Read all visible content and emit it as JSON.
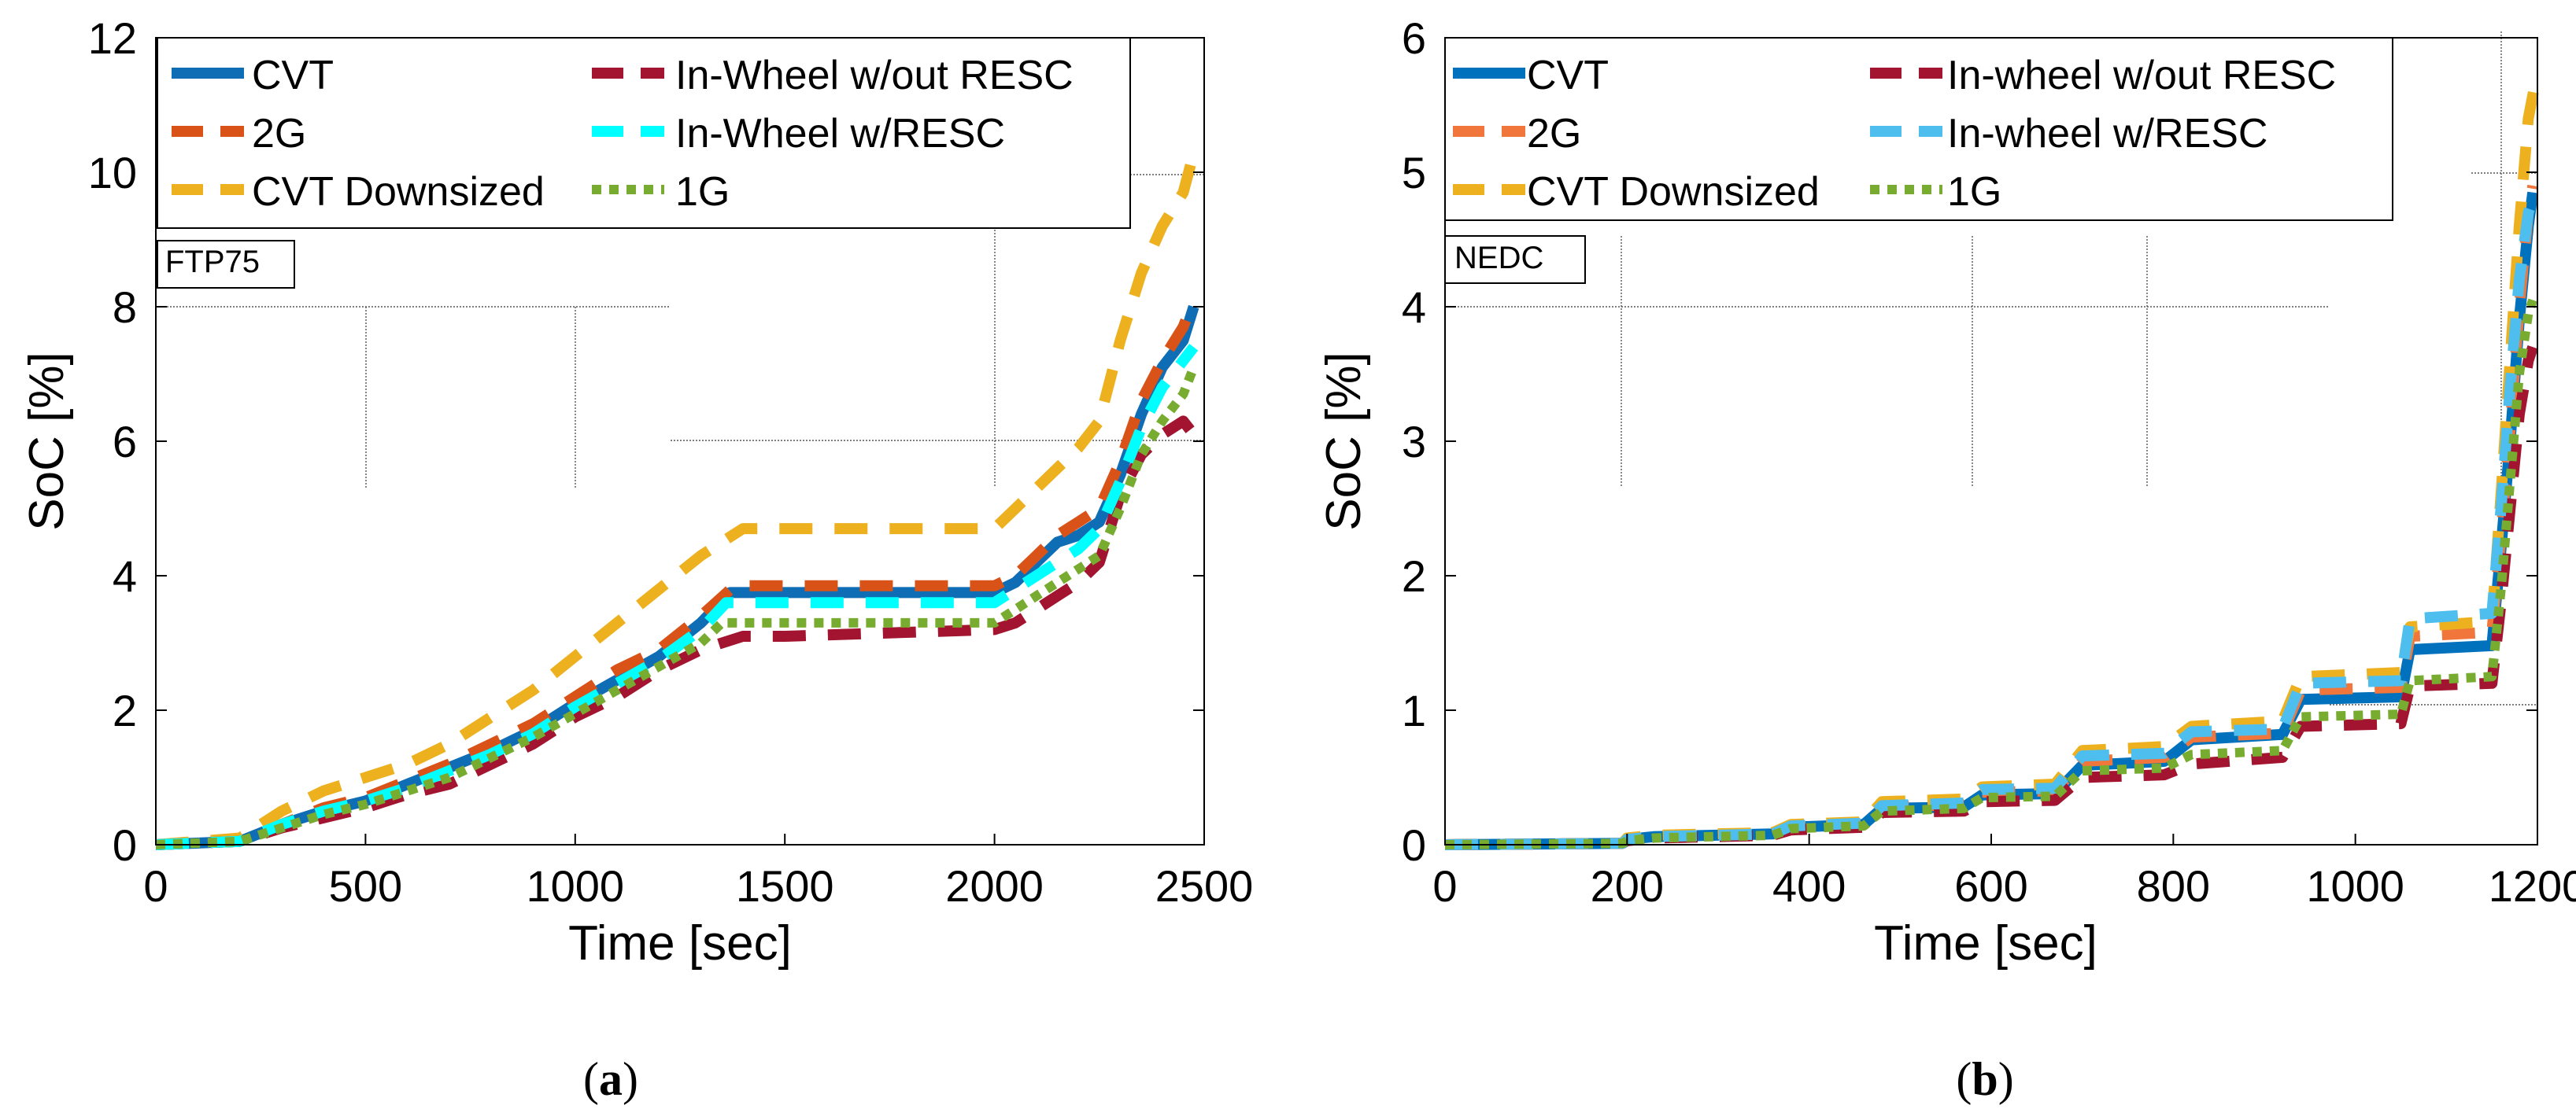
{
  "chart_data": [
    {
      "type": "line",
      "panel_label": "(a)",
      "label_letter": "a",
      "box_label": "FTP75",
      "xlabel": "Time [sec]",
      "ylabel": "SoC [%]",
      "xlim": [
        0,
        2500
      ],
      "ylim": [
        0,
        12
      ],
      "xticks": [
        0,
        500,
        1000,
        1500,
        2000,
        2500
      ],
      "yticks": [
        0,
        2,
        4,
        6,
        8,
        10,
        12
      ],
      "series": [
        {
          "name": "CVT",
          "color": "#0f6db5",
          "dash": "solid",
          "x": [
            0,
            200,
            300,
            400,
            500,
            600,
            700,
            800,
            900,
            1000,
            1100,
            1200,
            1300,
            1370,
            1500,
            2000,
            2050,
            2100,
            2150,
            2200,
            2250,
            2300,
            2350,
            2400,
            2450,
            2475
          ],
          "y": [
            0,
            0.05,
            0.3,
            0.5,
            0.65,
            0.9,
            1.15,
            1.4,
            1.7,
            2.1,
            2.45,
            2.8,
            3.3,
            3.75,
            3.75,
            3.75,
            3.9,
            4.2,
            4.5,
            4.6,
            4.8,
            5.5,
            6.4,
            7.1,
            7.5,
            8.0
          ]
        },
        {
          "name": "2G",
          "color": "#d95319",
          "dash": "dash",
          "x": [
            0,
            200,
            300,
            400,
            500,
            600,
            700,
            800,
            900,
            1000,
            1100,
            1200,
            1300,
            1380,
            2000,
            2050,
            2100,
            2150,
            2200,
            2250,
            2300,
            2350,
            2400,
            2450,
            2475
          ],
          "y": [
            0,
            0.05,
            0.3,
            0.55,
            0.7,
            0.95,
            1.2,
            1.5,
            1.8,
            2.2,
            2.6,
            2.9,
            3.4,
            3.85,
            3.85,
            4.0,
            4.3,
            4.6,
            4.8,
            5.0,
            5.7,
            6.6,
            7.2,
            7.7,
            8.1
          ]
        },
        {
          "name": "CVT Downsized",
          "color": "#edb120",
          "dash": "dash",
          "x": [
            0,
            200,
            300,
            400,
            500,
            600,
            700,
            800,
            900,
            1000,
            1100,
            1200,
            1300,
            1400,
            1500,
            2000,
            2050,
            2100,
            2150,
            2200,
            2250,
            2300,
            2350,
            2400,
            2450,
            2480
          ],
          "y": [
            0,
            0.1,
            0.5,
            0.8,
            1.0,
            1.2,
            1.5,
            1.9,
            2.3,
            2.8,
            3.3,
            3.8,
            4.3,
            4.7,
            4.7,
            4.7,
            5.0,
            5.3,
            5.6,
            5.9,
            6.3,
            7.5,
            8.5,
            9.2,
            9.7,
            10.4
          ]
        },
        {
          "name": "In-Wheel w/out RESC",
          "color": "#a2142f",
          "dash": "dash",
          "x": [
            0,
            200,
            300,
            400,
            500,
            600,
            700,
            800,
            900,
            1000,
            1100,
            1200,
            1300,
            1400,
            1500,
            2000,
            2050,
            2100,
            2150,
            2200,
            2250,
            2300,
            2350,
            2400,
            2450,
            2475
          ],
          "y": [
            0,
            0.05,
            0.25,
            0.4,
            0.55,
            0.75,
            0.9,
            1.2,
            1.5,
            1.9,
            2.2,
            2.6,
            2.9,
            3.1,
            3.1,
            3.2,
            3.3,
            3.5,
            3.7,
            3.9,
            4.2,
            5.2,
            5.8,
            6.1,
            6.3,
            6.1
          ]
        },
        {
          "name": "In-Wheel w/RESC",
          "color": "#00ffff",
          "dash": "dash",
          "x": [
            0,
            200,
            300,
            400,
            500,
            600,
            700,
            800,
            900,
            1000,
            1100,
            1200,
            1300,
            1360,
            1500,
            2000,
            2050,
            2100,
            2150,
            2200,
            2250,
            2300,
            2350,
            2400,
            2450,
            2475
          ],
          "y": [
            0,
            0.05,
            0.3,
            0.5,
            0.65,
            0.85,
            1.1,
            1.35,
            1.65,
            2.05,
            2.4,
            2.75,
            3.2,
            3.6,
            3.6,
            3.6,
            3.8,
            4.0,
            4.2,
            4.4,
            4.7,
            5.4,
            6.2,
            6.8,
            7.2,
            7.4
          ]
        },
        {
          "name": "1G",
          "color": "#77ac30",
          "dash": "dot",
          "x": [
            0,
            200,
            300,
            400,
            500,
            600,
            700,
            800,
            900,
            1000,
            1100,
            1200,
            1300,
            1350,
            1500,
            2000,
            2050,
            2100,
            2150,
            2200,
            2250,
            2300,
            2350,
            2400,
            2450,
            2475
          ],
          "y": [
            0,
            0.05,
            0.25,
            0.45,
            0.6,
            0.8,
            1.0,
            1.3,
            1.6,
            1.95,
            2.3,
            2.65,
            3.0,
            3.3,
            3.3,
            3.3,
            3.5,
            3.7,
            3.9,
            4.1,
            4.3,
            5.0,
            5.8,
            6.3,
            6.7,
            7.1
          ]
        }
      ]
    },
    {
      "type": "line",
      "panel_label": "(b)",
      "label_letter": "b",
      "box_label": "NEDC",
      "xlabel": "Time [sec]",
      "ylabel": "SoC [%]",
      "xlim": [
        0,
        1200
      ],
      "ylim": [
        0,
        6
      ],
      "xticks": [
        0,
        200,
        400,
        600,
        800,
        1000,
        1200
      ],
      "yticks": [
        0,
        1,
        2,
        3,
        4,
        5,
        6
      ],
      "series": [
        {
          "name": "CVT",
          "color": "#0072bd",
          "dash": "solid",
          "x": [
            0,
            195,
            200,
            230,
            360,
            380,
            460,
            480,
            570,
            590,
            670,
            700,
            790,
            820,
            920,
            940,
            1050,
            1060,
            1150,
            1160,
            1170,
            1180,
            1190,
            1195
          ],
          "y": [
            0,
            0.01,
            0.04,
            0.06,
            0.08,
            0.13,
            0.15,
            0.27,
            0.28,
            0.37,
            0.38,
            0.59,
            0.62,
            0.78,
            0.82,
            1.08,
            1.1,
            1.45,
            1.48,
            2.2,
            3.0,
            3.9,
            4.6,
            4.85
          ]
        },
        {
          "name": "2G",
          "color": "#f0763c",
          "dash": "dash",
          "x": [
            0,
            195,
            200,
            230,
            360,
            380,
            460,
            480,
            570,
            590,
            670,
            700,
            790,
            820,
            920,
            940,
            1050,
            1060,
            1150,
            1160,
            1170,
            1180,
            1190,
            1195
          ],
          "y": [
            0,
            0.01,
            0.04,
            0.06,
            0.08,
            0.13,
            0.15,
            0.28,
            0.3,
            0.39,
            0.4,
            0.62,
            0.65,
            0.8,
            0.83,
            1.15,
            1.17,
            1.55,
            1.58,
            2.3,
            3.1,
            4.0,
            4.7,
            4.9
          ]
        },
        {
          "name": "CVT Downsized",
          "color": "#edb120",
          "dash": "dash",
          "x": [
            0,
            195,
            200,
            230,
            360,
            380,
            460,
            480,
            570,
            590,
            670,
            700,
            790,
            820,
            920,
            940,
            1050,
            1060,
            1150,
            1160,
            1170,
            1180,
            1190,
            1200
          ],
          "y": [
            0,
            0.01,
            0.05,
            0.07,
            0.09,
            0.15,
            0.17,
            0.32,
            0.34,
            0.43,
            0.45,
            0.7,
            0.73,
            0.88,
            0.92,
            1.25,
            1.28,
            1.62,
            1.66,
            2.6,
            3.6,
            4.6,
            5.4,
            5.75
          ]
        },
        {
          "name": "In-wheel w/out RESC",
          "color": "#a2142f",
          "dash": "dash",
          "x": [
            0,
            195,
            200,
            230,
            360,
            380,
            460,
            480,
            570,
            590,
            670,
            700,
            790,
            820,
            920,
            940,
            1050,
            1060,
            1150,
            1160,
            1170,
            1180,
            1190,
            1195
          ],
          "y": [
            0,
            0.01,
            0.03,
            0.05,
            0.07,
            0.11,
            0.13,
            0.24,
            0.25,
            0.32,
            0.33,
            0.5,
            0.52,
            0.6,
            0.65,
            0.88,
            0.9,
            1.18,
            1.2,
            1.8,
            2.5,
            3.2,
            3.6,
            3.7
          ]
        },
        {
          "name": "In-wheel w/RESC",
          "color": "#4dbeee",
          "dash": "dash",
          "x": [
            0,
            195,
            200,
            230,
            360,
            380,
            460,
            480,
            570,
            590,
            670,
            700,
            790,
            820,
            920,
            940,
            1050,
            1060,
            1150,
            1160,
            1170,
            1180,
            1190,
            1195
          ],
          "y": [
            0,
            0.01,
            0.04,
            0.06,
            0.08,
            0.14,
            0.16,
            0.29,
            0.31,
            0.41,
            0.42,
            0.66,
            0.68,
            0.84,
            0.86,
            1.2,
            1.22,
            1.68,
            1.72,
            2.5,
            3.4,
            4.2,
            4.7,
            4.8
          ]
        },
        {
          "name": "1G",
          "color": "#77ac30",
          "dash": "dot",
          "x": [
            0,
            195,
            200,
            230,
            360,
            380,
            460,
            480,
            570,
            590,
            670,
            700,
            790,
            820,
            920,
            940,
            1050,
            1060,
            1150,
            1160,
            1170,
            1180,
            1190,
            1195
          ],
          "y": [
            0,
            0.01,
            0.03,
            0.05,
            0.07,
            0.12,
            0.14,
            0.25,
            0.27,
            0.35,
            0.36,
            0.55,
            0.57,
            0.67,
            0.7,
            0.95,
            0.97,
            1.22,
            1.25,
            1.9,
            2.7,
            3.5,
            3.95,
            4.05
          ]
        }
      ]
    }
  ]
}
